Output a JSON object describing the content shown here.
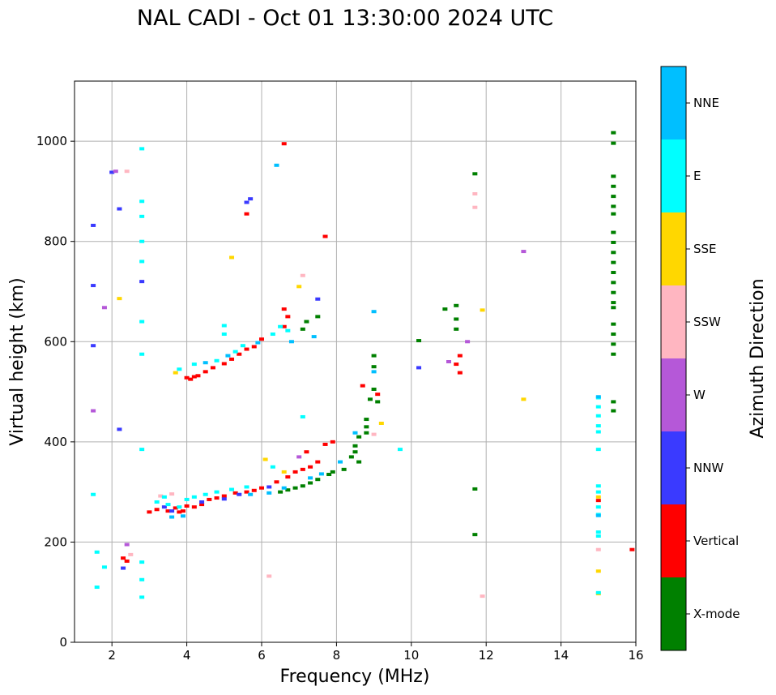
{
  "chart_data": {
    "type": "scatter",
    "title": "NAL CADI - Oct 01 13:30:00 2024 UTC",
    "xlabel": "Frequency (MHz)",
    "ylabel": "Virtual height (km)",
    "xlim": [
      1,
      16
    ],
    "ylim": [
      0,
      1120
    ],
    "xticks": [
      2,
      4,
      6,
      8,
      10,
      12,
      14,
      16
    ],
    "yticks": [
      0,
      200,
      400,
      600,
      800,
      1000
    ],
    "grid": true,
    "colorbar": {
      "label": "Azimuth Direction",
      "categories": [
        {
          "name": "X-mode",
          "color": "#008000"
        },
        {
          "name": "Vertical",
          "color": "#ff0000"
        },
        {
          "name": "NNW",
          "color": "#3a3aff"
        },
        {
          "name": "W",
          "color": "#b558d8"
        },
        {
          "name": "SSW",
          "color": "#ffb6c1"
        },
        {
          "name": "SSE",
          "color": "#ffd700"
        },
        {
          "name": "E",
          "color": "#00ffff"
        },
        {
          "name": "NNE",
          "color": "#00bfff"
        }
      ]
    },
    "series": [
      {
        "name": "X-mode",
        "color": "#008000",
        "points": [
          [
            15.4,
            1017
          ],
          [
            15.4,
            996
          ],
          [
            15.4,
            930
          ],
          [
            15.4,
            910
          ],
          [
            15.4,
            890
          ],
          [
            15.4,
            870
          ],
          [
            15.4,
            855
          ],
          [
            15.4,
            818
          ],
          [
            15.4,
            798
          ],
          [
            15.4,
            778
          ],
          [
            15.4,
            758
          ],
          [
            15.4,
            738
          ],
          [
            15.4,
            718
          ],
          [
            15.4,
            698
          ],
          [
            15.4,
            678
          ],
          [
            15.4,
            668
          ],
          [
            15.4,
            635
          ],
          [
            15.4,
            615
          ],
          [
            15.4,
            595
          ],
          [
            15.4,
            575
          ],
          [
            15.4,
            480
          ],
          [
            15.4,
            462
          ],
          [
            11.7,
            935
          ],
          [
            11.7,
            306
          ],
          [
            11.7,
            215
          ],
          [
            10.9,
            665
          ],
          [
            11.2,
            672
          ],
          [
            11.2,
            645
          ],
          [
            11.2,
            625
          ],
          [
            10.2,
            602
          ],
          [
            9.0,
            572
          ],
          [
            9.0,
            550
          ],
          [
            9.0,
            505
          ],
          [
            8.9,
            485
          ],
          [
            9.1,
            480
          ],
          [
            8.8,
            445
          ],
          [
            8.8,
            430
          ],
          [
            8.8,
            418
          ],
          [
            8.6,
            410
          ],
          [
            8.5,
            392
          ],
          [
            8.5,
            380
          ],
          [
            8.4,
            370
          ],
          [
            8.6,
            360
          ],
          [
            8.2,
            345
          ],
          [
            7.9,
            340
          ],
          [
            7.8,
            335
          ],
          [
            7.5,
            325
          ],
          [
            7.3,
            318
          ],
          [
            7.1,
            312
          ],
          [
            6.9,
            308
          ],
          [
            6.7,
            304
          ],
          [
            6.5,
            300
          ],
          [
            7.2,
            640
          ],
          [
            7.5,
            650
          ],
          [
            7.1,
            625
          ]
        ]
      },
      {
        "name": "Vertical",
        "color": "#ff0000",
        "points": [
          [
            15.9,
            185
          ],
          [
            15.0,
            283
          ],
          [
            9.1,
            495
          ],
          [
            8.7,
            512
          ],
          [
            11.3,
            572
          ],
          [
            11.2,
            555
          ],
          [
            11.3,
            538
          ],
          [
            4.2,
            530
          ],
          [
            4.1,
            525
          ],
          [
            4.3,
            532
          ],
          [
            4.0,
            528
          ],
          [
            4.5,
            540
          ],
          [
            4.7,
            548
          ],
          [
            5.0,
            556
          ],
          [
            5.2,
            565
          ],
          [
            5.4,
            575
          ],
          [
            5.6,
            585
          ],
          [
            5.8,
            590
          ],
          [
            6.0,
            605
          ],
          [
            5.6,
            855
          ],
          [
            6.6,
            995
          ],
          [
            7.7,
            810
          ],
          [
            7.9,
            400
          ],
          [
            7.7,
            395
          ],
          [
            3.0,
            260
          ],
          [
            3.2,
            265
          ],
          [
            3.5,
            262
          ],
          [
            3.7,
            268
          ],
          [
            3.9,
            262
          ],
          [
            4.0,
            272
          ],
          [
            4.2,
            270
          ],
          [
            4.4,
            275
          ],
          [
            3.8,
            260
          ],
          [
            4.6,
            285
          ],
          [
            4.8,
            288
          ],
          [
            5.0,
            292
          ],
          [
            5.3,
            298
          ],
          [
            5.6,
            300
          ],
          [
            5.8,
            303
          ],
          [
            6.0,
            308
          ],
          [
            6.4,
            320
          ],
          [
            6.7,
            330
          ],
          [
            6.9,
            340
          ],
          [
            7.1,
            345
          ],
          [
            7.3,
            350
          ],
          [
            7.5,
            360
          ],
          [
            7.2,
            380
          ],
          [
            2.3,
            168
          ],
          [
            2.4,
            162
          ],
          [
            6.6,
            665
          ],
          [
            6.7,
            650
          ],
          [
            6.6,
            630
          ]
        ]
      },
      {
        "name": "NNW",
        "color": "#3a3aff",
        "points": [
          [
            1.5,
            832
          ],
          [
            1.5,
            712
          ],
          [
            1.5,
            592
          ],
          [
            2.0,
            938
          ],
          [
            2.2,
            865
          ],
          [
            2.3,
            148
          ],
          [
            2.8,
            720
          ],
          [
            5.7,
            885
          ],
          [
            5.6,
            878
          ],
          [
            7.5,
            685
          ],
          [
            10.2,
            548
          ],
          [
            3.4,
            270
          ],
          [
            3.6,
            262
          ],
          [
            4.4,
            280
          ],
          [
            5.0,
            286
          ],
          [
            5.4,
            295
          ],
          [
            6.2,
            310
          ],
          [
            2.2,
            425
          ]
        ]
      },
      {
        "name": "W",
        "color": "#b558d8",
        "points": [
          [
            13.0,
            780
          ],
          [
            11.5,
            600
          ],
          [
            1.5,
            462
          ],
          [
            1.8,
            668
          ],
          [
            2.1,
            940
          ],
          [
            2.4,
            195
          ],
          [
            11.0,
            560
          ],
          [
            7.0,
            370
          ]
        ]
      },
      {
        "name": "SSW",
        "color": "#ffb6c1",
        "points": [
          [
            11.9,
            92
          ],
          [
            15.0,
            185
          ],
          [
            11.7,
            895
          ],
          [
            11.7,
            868
          ],
          [
            6.2,
            132
          ],
          [
            2.5,
            175
          ],
          [
            2.4,
            940
          ],
          [
            9.0,
            415
          ],
          [
            3.3,
            292
          ],
          [
            3.6,
            296
          ],
          [
            7.1,
            732
          ]
        ]
      },
      {
        "name": "SSE",
        "color": "#ffd700",
        "points": [
          [
            13.0,
            485
          ],
          [
            15.0,
            290
          ],
          [
            15.0,
            142
          ],
          [
            15.0,
            97
          ],
          [
            11.9,
            663
          ],
          [
            2.2,
            686
          ],
          [
            6.1,
            365
          ],
          [
            6.6,
            340
          ],
          [
            7.0,
            710
          ],
          [
            9.2,
            437
          ],
          [
            5.2,
            768
          ],
          [
            3.7,
            538
          ]
        ]
      },
      {
        "name": "E",
        "color": "#00ffff",
        "points": [
          [
            15.0,
            488
          ],
          [
            15.0,
            470
          ],
          [
            15.0,
            452
          ],
          [
            15.0,
            432
          ],
          [
            15.0,
            420
          ],
          [
            15.0,
            385
          ],
          [
            15.0,
            312
          ],
          [
            15.0,
            300
          ],
          [
            15.0,
            270
          ],
          [
            15.0,
            255
          ],
          [
            15.0,
            220
          ],
          [
            15.0,
            212
          ],
          [
            15.0,
            99
          ],
          [
            9.7,
            385
          ],
          [
            1.6,
            110
          ],
          [
            1.6,
            180
          ],
          [
            1.5,
            295
          ],
          [
            1.8,
            150
          ],
          [
            2.8,
            985
          ],
          [
            2.8,
            880
          ],
          [
            2.8,
            850
          ],
          [
            2.8,
            800
          ],
          [
            2.8,
            760
          ],
          [
            2.8,
            640
          ],
          [
            2.8,
            575
          ],
          [
            2.8,
            385
          ],
          [
            2.8,
            160
          ],
          [
            2.8,
            125
          ],
          [
            2.8,
            90
          ],
          [
            3.2,
            280
          ],
          [
            3.4,
            290
          ],
          [
            3.5,
            275
          ],
          [
            3.8,
            270
          ],
          [
            4.0,
            285
          ],
          [
            4.2,
            290
          ],
          [
            4.5,
            295
          ],
          [
            4.8,
            300
          ],
          [
            5.2,
            305
          ],
          [
            5.6,
            310
          ],
          [
            5.0,
            632
          ],
          [
            5.0,
            615
          ],
          [
            6.3,
            615
          ],
          [
            6.5,
            630
          ],
          [
            6.7,
            622
          ],
          [
            7.1,
            450
          ],
          [
            6.3,
            350
          ],
          [
            3.8,
            545
          ],
          [
            4.2,
            555
          ],
          [
            4.8,
            562
          ],
          [
            5.3,
            580
          ],
          [
            5.5,
            592
          ]
        ]
      },
      {
        "name": "NNE",
        "color": "#00bfff",
        "points": [
          [
            15.0,
            490
          ],
          [
            15.0,
            253
          ],
          [
            6.4,
            952
          ],
          [
            9.0,
            660
          ],
          [
            9.0,
            540
          ],
          [
            8.5,
            418
          ],
          [
            8.1,
            360
          ],
          [
            3.6,
            250
          ],
          [
            3.9,
            252
          ],
          [
            5.7,
            295
          ],
          [
            6.2,
            298
          ],
          [
            6.6,
            308
          ],
          [
            7.3,
            328
          ],
          [
            7.6,
            336
          ],
          [
            4.5,
            558
          ],
          [
            5.1,
            572
          ],
          [
            5.9,
            598
          ],
          [
            6.8,
            600
          ],
          [
            7.4,
            610
          ]
        ]
      }
    ]
  }
}
